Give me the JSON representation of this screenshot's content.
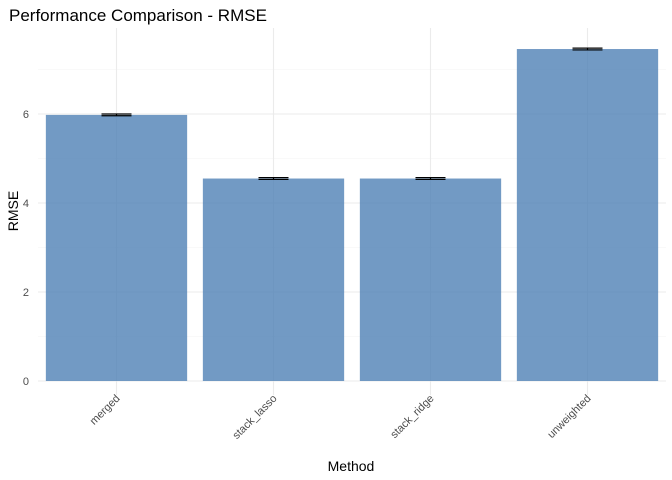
{
  "chart_data": {
    "type": "bar",
    "title": "Performance Comparison - RMSE",
    "xlabel": "Method",
    "ylabel": "RMSE",
    "categories": [
      "merged",
      "stack_lasso",
      "stack_ridge",
      "unweighted"
    ],
    "values": [
      5.98,
      4.55,
      4.55,
      7.46
    ],
    "error_upper": [
      6.0,
      4.57,
      4.57,
      7.48
    ],
    "error_lower": [
      5.96,
      4.53,
      4.53,
      7.44
    ],
    "yticks": [
      0,
      2,
      4,
      6
    ],
    "ylim": [
      0,
      7.82
    ],
    "grid": true,
    "legend": "none",
    "bar_color": "#4a7db4"
  }
}
